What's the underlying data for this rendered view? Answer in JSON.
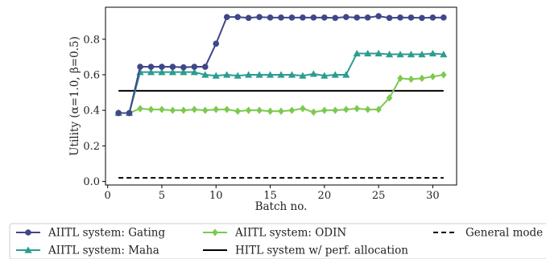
{
  "chart_data": {
    "type": "line",
    "xlabel": "Batch no.",
    "ylabel": "Utility (α=1.0, β=0.5)",
    "xlim": [
      -0.2,
      32.2
    ],
    "ylim": [
      -0.02,
      0.98
    ],
    "xticks": [
      0,
      5,
      10,
      15,
      20,
      25,
      30
    ],
    "yticks": [
      0.0,
      0.2,
      0.4,
      0.6,
      0.8
    ],
    "ytick_labels": [
      "0.0",
      "0.2",
      "0.4",
      "0.6",
      "0.8"
    ],
    "grid": false,
    "legend_placement": "bottom",
    "x": [
      1,
      2,
      3,
      4,
      5,
      6,
      7,
      8,
      9,
      10,
      11,
      12,
      13,
      14,
      15,
      16,
      17,
      18,
      19,
      20,
      21,
      22,
      23,
      24,
      25,
      26,
      27,
      28,
      29,
      30,
      31
    ],
    "series": [
      {
        "name": "AIITL system: Gating",
        "color": "#3f4788",
        "marker": "circle",
        "line": "solid",
        "values": [
          0.385,
          0.385,
          0.645,
          0.645,
          0.645,
          0.645,
          0.642,
          0.645,
          0.645,
          0.775,
          0.925,
          0.925,
          0.92,
          0.925,
          0.922,
          0.922,
          0.922,
          0.922,
          0.922,
          0.922,
          0.92,
          0.925,
          0.922,
          0.922,
          0.93,
          0.92,
          0.922,
          0.922,
          0.92,
          0.922,
          0.922
        ]
      },
      {
        "name": "AIITL system: Maha",
        "color": "#2a9d8f",
        "marker": "triangle",
        "line": "solid",
        "values": [
          0.385,
          0.385,
          0.615,
          0.615,
          0.615,
          0.615,
          0.615,
          0.615,
          0.6,
          0.595,
          0.6,
          0.595,
          0.6,
          0.6,
          0.6,
          0.6,
          0.6,
          0.595,
          0.605,
          0.595,
          0.6,
          0.6,
          0.72,
          0.72,
          0.72,
          0.715,
          0.715,
          0.715,
          0.715,
          0.72,
          0.715
        ]
      },
      {
        "name": "AIITL system: ODIN",
        "color": "#7cc94f",
        "marker": "diamond",
        "line": "solid",
        "values": [
          0.385,
          0.385,
          0.41,
          0.405,
          0.405,
          0.4,
          0.4,
          0.405,
          0.4,
          0.405,
          0.405,
          0.395,
          0.4,
          0.4,
          0.395,
          0.395,
          0.4,
          0.41,
          0.39,
          0.4,
          0.4,
          0.405,
          0.41,
          0.405,
          0.405,
          0.47,
          0.58,
          0.575,
          0.58,
          0.59,
          0.6
        ]
      },
      {
        "name": "HITL system w/ perf. allocation",
        "color": "#000000",
        "marker": "none",
        "line": "solid",
        "values": [
          0.51,
          0.51,
          0.51,
          0.51,
          0.51,
          0.51,
          0.51,
          0.51,
          0.51,
          0.51,
          0.51,
          0.51,
          0.51,
          0.51,
          0.51,
          0.51,
          0.51,
          0.51,
          0.51,
          0.51,
          0.51,
          0.51,
          0.51,
          0.51,
          0.51,
          0.51,
          0.51,
          0.51,
          0.51,
          0.51,
          0.51
        ]
      },
      {
        "name": "General model",
        "legend_text_visible": "General mode",
        "color": "#000000",
        "marker": "none",
        "line": "dashed",
        "values": [
          0.02,
          0.02,
          0.02,
          0.02,
          0.02,
          0.02,
          0.02,
          0.02,
          0.02,
          0.02,
          0.02,
          0.02,
          0.02,
          0.02,
          0.02,
          0.02,
          0.02,
          0.02,
          0.02,
          0.02,
          0.02,
          0.02,
          0.02,
          0.02,
          0.02,
          0.02,
          0.02,
          0.02,
          0.02,
          0.02,
          0.02
        ]
      }
    ]
  }
}
